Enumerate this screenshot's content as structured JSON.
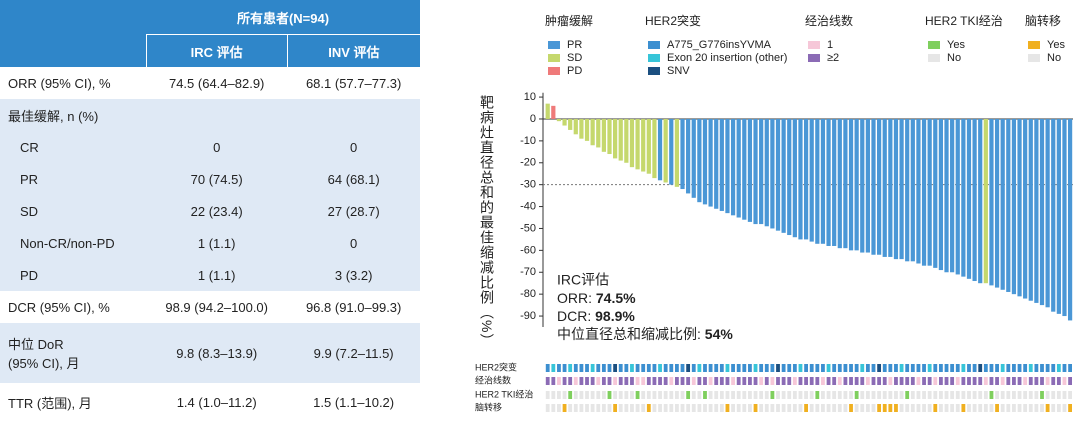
{
  "table": {
    "group": "所有患者(N=94)",
    "columns": [
      "IRC 评估",
      "INV 评估"
    ],
    "rows": [
      [
        "ORR (95% CI), %",
        "74.5 (64.4–82.9)",
        "68.1 (57.7–77.3)"
      ],
      [
        "最佳缓解, n (%)"
      ],
      [
        "CR",
        "0",
        "0"
      ],
      [
        "PR",
        "70 (74.5)",
        "64 (68.1)"
      ],
      [
        "SD",
        "22 (23.4)",
        "27 (28.7)"
      ],
      [
        "Non-CR/non-PD",
        "1 (1.1)",
        "0"
      ],
      [
        "PD",
        "1 (1.1)",
        "3 (3.2)"
      ],
      [
        "DCR (95% CI), %",
        "98.9 (94.2–100.0)",
        "96.8 (91.0–99.3)"
      ],
      [
        [
          "中位 DoR",
          "(95% CI), 月"
        ],
        "9.8 (8.3–13.9)",
        "9.9 (7.2–11.5)"
      ],
      [
        "TTR (范围), 月",
        "1.4 (1.0–11.2)",
        "1.5 (1.1–10.2)"
      ]
    ]
  },
  "chart_data": {
    "type": "waterfall",
    "ylabel": "靶病灶直径总和的最佳缩减比例（%）",
    "ylim": [
      -95,
      12
    ],
    "yticks": [
      10,
      0,
      -10,
      -20,
      -30,
      -40,
      -50,
      -60,
      -70,
      -80,
      -90
    ],
    "ref_line": -30,
    "response": {
      "name": "肿瘤缓解",
      "categories": [
        "PR",
        "SD",
        "PD"
      ],
      "colors": [
        "#4a97d6",
        "#c5d86d",
        "#ef7a7a"
      ]
    },
    "values": [
      7,
      6,
      -1,
      -3,
      -5,
      -7,
      -9,
      -10,
      -12,
      -13,
      -15,
      -16,
      -18,
      -19,
      -20,
      -22,
      -23,
      -24,
      -25,
      -27,
      -28,
      -29,
      -30,
      -31,
      -32,
      -34,
      -36,
      -38,
      -39,
      -40,
      -41,
      -42,
      -43,
      -44,
      -45,
      -46,
      -47,
      -48,
      -48,
      -49,
      -50,
      -51,
      -52,
      -53,
      -54,
      -55,
      -55,
      -56,
      -57,
      -57,
      -58,
      -58,
      -59,
      -59,
      -60,
      -60,
      -61,
      -61,
      -62,
      -62,
      -63,
      -63,
      -64,
      -64,
      -65,
      -65,
      -66,
      -67,
      -67,
      -68,
      -69,
      -70,
      -70,
      -71,
      -72,
      -73,
      -74,
      -75,
      -75,
      -76,
      -77,
      -78,
      -79,
      -80,
      -81,
      -82,
      -83,
      -84,
      -85,
      -86,
      -88,
      -89,
      -90,
      -92
    ],
    "bar_response": [
      1,
      2,
      1,
      1,
      1,
      1,
      1,
      1,
      1,
      1,
      1,
      1,
      1,
      1,
      1,
      1,
      1,
      1,
      1,
      1,
      0,
      1,
      0,
      1,
      0,
      0,
      0,
      0,
      0,
      0,
      0,
      0,
      0,
      0,
      0,
      0,
      0,
      0,
      0,
      0,
      0,
      0,
      0,
      0,
      0,
      0,
      0,
      0,
      0,
      0,
      0,
      0,
      0,
      0,
      0,
      0,
      0,
      0,
      0,
      0,
      0,
      0,
      0,
      0,
      0,
      0,
      0,
      0,
      0,
      0,
      0,
      0,
      0,
      0,
      0,
      0,
      0,
      0,
      1,
      0,
      0,
      0,
      0,
      0,
      0,
      0,
      0,
      0,
      0,
      0,
      0,
      0,
      0,
      0
    ],
    "annotation": [
      "IRC评估",
      [
        "ORR: ",
        "74.5%"
      ],
      [
        "DCR: ",
        "98.9%"
      ],
      [
        "中位直径总和缩减比例: ",
        "54%"
      ]
    ],
    "tracks": [
      {
        "name": "HER2突变",
        "categories": [
          "A775_G776insYVMA",
          "Exon 20 insertion (other)",
          "SNV"
        ],
        "colors": [
          "#3c8fd0",
          "#37c5d8",
          "#1b4f80"
        ],
        "values": [
          0,
          1,
          0,
          0,
          1,
          0,
          0,
          0,
          1,
          0,
          0,
          0,
          2,
          0,
          0,
          1,
          0,
          0,
          0,
          0,
          1,
          0,
          0,
          0,
          0,
          2,
          0,
          1,
          0,
          0,
          0,
          0,
          1,
          0,
          0,
          0,
          0,
          1,
          0,
          0,
          0,
          2,
          0,
          0,
          0,
          1,
          0,
          0,
          0,
          0,
          1,
          0,
          0,
          0,
          0,
          0,
          1,
          0,
          0,
          2,
          0,
          0,
          0,
          1,
          0,
          0,
          0,
          0,
          1,
          0,
          0,
          0,
          0,
          0,
          1,
          0,
          0,
          2,
          0,
          0,
          0,
          1,
          0,
          0,
          0,
          0,
          1,
          0,
          0,
          0,
          0,
          1,
          0,
          0
        ]
      },
      {
        "name": "经治线数",
        "categories": [
          "1",
          "≥2"
        ],
        "colors": [
          "#f6c7d8",
          "#8b6bb5"
        ],
        "values": [
          1,
          1,
          0,
          1,
          1,
          0,
          1,
          1,
          1,
          0,
          1,
          1,
          0,
          1,
          1,
          1,
          0,
          0,
          1,
          1,
          1,
          1,
          0,
          1,
          1,
          1,
          0,
          1,
          1,
          0,
          1,
          1,
          1,
          0,
          1,
          1,
          1,
          1,
          0,
          1,
          0,
          1,
          1,
          1,
          0,
          1,
          1,
          1,
          1,
          0,
          1,
          1,
          0,
          1,
          1,
          1,
          1,
          0,
          1,
          1,
          1,
          0,
          1,
          1,
          1,
          1,
          0,
          1,
          1,
          0,
          1,
          1,
          1,
          0,
          1,
          1,
          1,
          1,
          0,
          1,
          1,
          0,
          1,
          1,
          1,
          0,
          1,
          1,
          1,
          0,
          1,
          1,
          0,
          1
        ]
      },
      {
        "name": "HER2 TKI经治",
        "categories": [
          "Yes",
          "No"
        ],
        "colors": [
          "#7fcf5e",
          "#e6e6e6"
        ],
        "values": [
          1,
          1,
          1,
          1,
          0,
          1,
          1,
          1,
          1,
          1,
          1,
          0,
          1,
          1,
          1,
          1,
          0,
          1,
          1,
          1,
          1,
          1,
          1,
          1,
          1,
          0,
          1,
          1,
          0,
          1,
          1,
          1,
          1,
          1,
          1,
          1,
          1,
          1,
          1,
          1,
          0,
          1,
          1,
          1,
          1,
          1,
          1,
          1,
          0,
          1,
          1,
          1,
          1,
          1,
          1,
          0,
          1,
          1,
          1,
          1,
          1,
          1,
          1,
          1,
          0,
          1,
          1,
          1,
          1,
          1,
          1,
          1,
          1,
          1,
          1,
          1,
          1,
          1,
          1,
          0,
          1,
          1,
          1,
          1,
          1,
          1,
          1,
          1,
          0,
          1,
          1,
          1,
          1,
          1
        ]
      },
      {
        "name": "脑转移",
        "categories": [
          "Yes",
          "No"
        ],
        "colors": [
          "#f0b020",
          "#e6e6e6"
        ],
        "values": [
          1,
          1,
          1,
          0,
          1,
          1,
          1,
          1,
          1,
          1,
          1,
          1,
          0,
          1,
          1,
          1,
          1,
          1,
          0,
          1,
          1,
          1,
          1,
          1,
          1,
          1,
          1,
          1,
          1,
          1,
          1,
          1,
          0,
          1,
          1,
          1,
          1,
          0,
          1,
          1,
          1,
          1,
          1,
          1,
          1,
          1,
          0,
          1,
          1,
          1,
          1,
          1,
          1,
          1,
          0,
          1,
          1,
          1,
          1,
          0,
          0,
          0,
          0,
          1,
          1,
          1,
          1,
          1,
          1,
          0,
          1,
          1,
          1,
          1,
          0,
          1,
          1,
          1,
          1,
          1,
          0,
          1,
          1,
          1,
          1,
          1,
          1,
          1,
          1,
          0,
          1,
          1,
          1,
          0
        ]
      }
    ]
  }
}
